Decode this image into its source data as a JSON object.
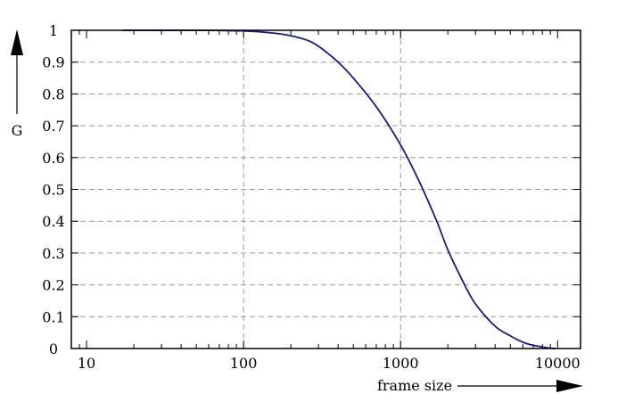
{
  "chart_data": {
    "type": "line",
    "title": "",
    "xlabel": "frame size",
    "ylabel": "G",
    "x_scale": "log",
    "xlim": [
      8,
      14000
    ],
    "ylim": [
      0,
      1
    ],
    "x_ticks_labeled": [
      10,
      100,
      1000,
      10000
    ],
    "x_tick_labels": [
      "10",
      "100",
      "1000",
      "10000"
    ],
    "y_ticks": [
      0,
      0.1,
      0.2,
      0.3,
      0.4,
      0.5,
      0.6,
      0.7,
      0.8,
      0.9,
      1
    ],
    "y_tick_labels": [
      "0",
      "0.1",
      "0.2",
      "0.3",
      "0.4",
      "0.5",
      "0.6",
      "0.7",
      "0.8",
      "0.9",
      "1"
    ],
    "grid": "dashed at 100, 1000 and every 0.1 on y",
    "series": [
      {
        "color": "#1a1a7a",
        "x": [
          17,
          50,
          100,
          150,
          200,
          250,
          300,
          400,
          500,
          700,
          1000,
          1300,
          1700,
          2000,
          2500,
          3000,
          4000,
          5000,
          6000,
          7000,
          8000,
          9000,
          9700
        ],
        "y": [
          1.0,
          1.0,
          0.998,
          0.992,
          0.983,
          0.97,
          0.95,
          0.9,
          0.85,
          0.76,
          0.64,
          0.53,
          0.4,
          0.31,
          0.21,
          0.14,
          0.07,
          0.04,
          0.02,
          0.01,
          0.005,
          0.001,
          0.0
        ]
      }
    ]
  }
}
